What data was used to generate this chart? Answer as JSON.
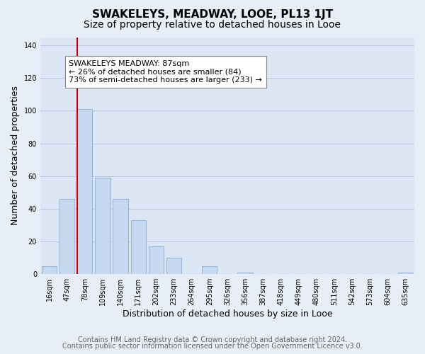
{
  "title": "SWAKELEYS, MEADWAY, LOOE, PL13 1JT",
  "subtitle": "Size of property relative to detached houses in Looe",
  "xlabel": "Distribution of detached houses by size in Looe",
  "ylabel": "Number of detached properties",
  "bar_labels": [
    "16sqm",
    "47sqm",
    "78sqm",
    "109sqm",
    "140sqm",
    "171sqm",
    "202sqm",
    "233sqm",
    "264sqm",
    "295sqm",
    "326sqm",
    "356sqm",
    "387sqm",
    "418sqm",
    "449sqm",
    "480sqm",
    "511sqm",
    "542sqm",
    "573sqm",
    "604sqm",
    "635sqm"
  ],
  "bar_heights": [
    5,
    46,
    101,
    59,
    46,
    33,
    17,
    10,
    0,
    5,
    0,
    1,
    0,
    0,
    0,
    0,
    0,
    0,
    0,
    0,
    1
  ],
  "bar_color": "#c6d9f1",
  "bar_edge_color": "#9ab7d8",
  "ylim": [
    0,
    145
  ],
  "yticks": [
    0,
    20,
    40,
    60,
    80,
    100,
    120,
    140
  ],
  "vline_color": "#cc0000",
  "annotation_title": "SWAKELEYS MEADWAY: 87sqm",
  "annotation_line1": "← 26% of detached houses are smaller (84)",
  "annotation_line2": "73% of semi-detached houses are larger (233) →",
  "footer_line1": "Contains HM Land Registry data © Crown copyright and database right 2024.",
  "footer_line2": "Contains public sector information licensed under the Open Government Licence v3.0.",
  "bg_color": "#e8eef8",
  "plot_bg_color": "#dce6f4",
  "grid_color": "#b8c8e0",
  "title_fontsize": 11,
  "subtitle_fontsize": 10,
  "axis_label_fontsize": 9,
  "tick_fontsize": 7,
  "footer_fontsize": 7,
  "annotation_fontsize": 8
}
